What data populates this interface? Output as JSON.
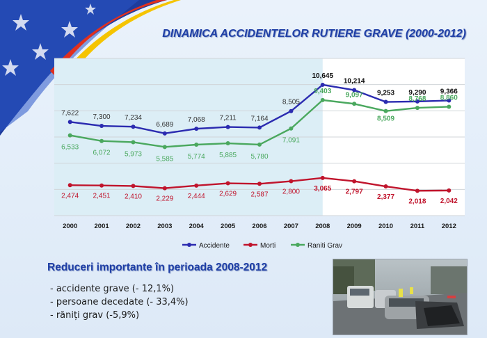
{
  "slide": {
    "title": "DINAMICA ACCIDENTELOR RUTIERE GRAVE  (2000-2012)",
    "subtitle": "Reduceri importante în perioada 2008-2012",
    "bullets": [
      "- accidente grave  (- 12,1%)",
      "- persoane decedate (- 33,4%)",
      "- răniți grav (-5,9%)"
    ]
  },
  "colors": {
    "accidente": "#2b2bb0",
    "morti": "#c0142c",
    "raniti": "#4aa85e",
    "title": "#1f3fa6",
    "highlight_band": "#bfe0ef"
  },
  "chart_data": {
    "type": "line",
    "title": "DINAMICA ACCIDENTELOR RUTIERE GRAVE  (2000-2012)",
    "x": [
      "2000",
      "2001",
      "2002",
      "2003",
      "2004",
      "2005",
      "2006",
      "2007",
      "2008",
      "2009",
      "2010",
      "2011",
      "2012"
    ],
    "series": [
      {
        "name": "Accidente",
        "values": [
          7622,
          7300,
          7234,
          6689,
          7068,
          7211,
          7164,
          8505,
          10645,
          10214,
          9253,
          9290,
          9366
        ],
        "labels": [
          "7,622",
          "7,300",
          "7,234",
          "6,689",
          "7,068",
          "7,211",
          "7,164",
          "8,505",
          "10,645",
          "10,214",
          "9,253",
          "9,290",
          "9,366"
        ]
      },
      {
        "name": "Morti",
        "values": [
          2474,
          2451,
          2410,
          2229,
          2444,
          2629,
          2587,
          2800,
          3065,
          2797,
          2377,
          2018,
          2042
        ],
        "labels": [
          "2,474",
          "2,451",
          "2,410",
          "2,229",
          "2,444",
          "2,629",
          "2,587",
          "2,800",
          "3,065",
          "2,797",
          "2,377",
          "2,018",
          "2,042"
        ]
      },
      {
        "name": "Raniti Grav",
        "values": [
          6533,
          6072,
          5973,
          5585,
          5774,
          5885,
          5780,
          7091,
          9403,
          9097,
          8509,
          8768,
          8860
        ],
        "labels": [
          "6,533",
          "6,072",
          "5,973",
          "5,585",
          "5,774",
          "5,885",
          "5,780",
          "7,091",
          "9,403",
          "9,097",
          "8,509",
          "8,768",
          "8,860"
        ]
      }
    ],
    "grid": true,
    "legend_position": "bottom",
    "highlight_range": [
      "2000",
      "2008"
    ]
  },
  "icons": {
    "corner": "eu-stars-icon",
    "photo": "car-crash-photo"
  }
}
